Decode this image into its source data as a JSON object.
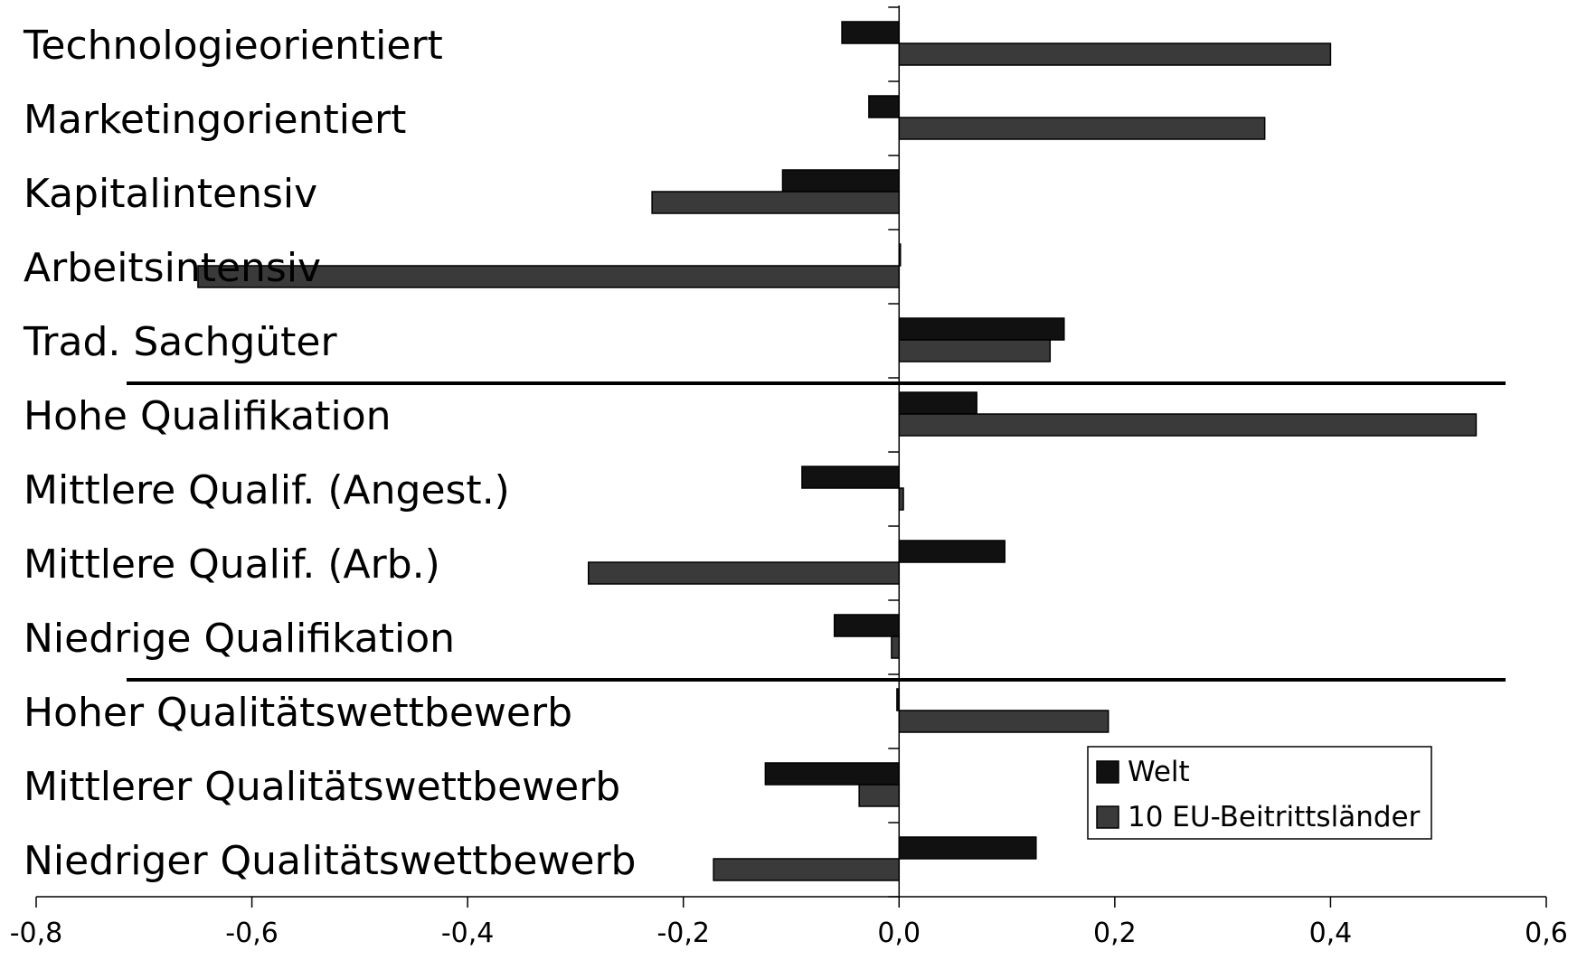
{
  "chart_data": {
    "type": "bar",
    "orientation": "horizontal",
    "categories": [
      "Technologieorientiert",
      "Marketingorientiert",
      "Kapitalintensiv",
      "Arbeitsintensiv",
      "Trad. Sachgüter",
      "Hohe Qualifikation",
      "Mittlere Qualif. (Angest.)",
      "Mittlere Qualif. (Arb.)",
      "Niedrige Qualifikation",
      "Hoher Qualitätswettbewerb",
      "Mittlerer Qualitätswettbewerb",
      "Niedriger Qualitätswettbewerb"
    ],
    "series": [
      {
        "name": "Welt",
        "color": "#111111",
        "values": [
          -0.053,
          -0.028,
          -0.108,
          0.001,
          0.153,
          0.072,
          -0.09,
          0.098,
          -0.06,
          -0.002,
          -0.124,
          0.127
        ]
      },
      {
        "name": "10 EU-Beitrittsländer",
        "color": "#3a3a3a",
        "values": [
          0.4,
          0.339,
          -0.229,
          -0.65,
          0.14,
          0.535,
          0.004,
          -0.288,
          -0.007,
          0.194,
          -0.037,
          -0.172
        ]
      }
    ],
    "xlim": [
      -0.8,
      0.6
    ],
    "xticks": [
      "-0,8",
      "-0,6",
      "-0,4",
      "-0,2",
      "0,0",
      "0,2",
      "0,4",
      "0,6"
    ],
    "group_separators_after": [
      4,
      8
    ],
    "legend_position": "bottom-right",
    "grid": false
  }
}
